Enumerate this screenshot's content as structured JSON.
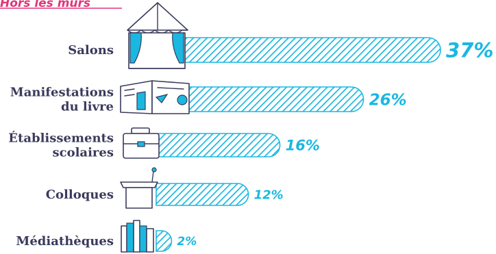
{
  "header": {
    "text": "Hors les murs"
  },
  "chart_data": {
    "type": "bar",
    "orientation": "horizontal",
    "title": "Hors les murs",
    "categories": [
      "Salons",
      "Manifestations du livre",
      "Établissements scolaires",
      "Colloques",
      "Médiathèques"
    ],
    "category_lines": [
      [
        "Salons"
      ],
      [
        "Manifestations",
        "du livre"
      ],
      [
        "Établissements",
        "scolaires"
      ],
      [
        "Colloques"
      ],
      [
        "Médiathèques"
      ]
    ],
    "values": [
      37,
      26,
      16,
      12,
      2
    ],
    "value_labels": [
      "37%",
      "26%",
      "16%",
      "12%",
      "2%"
    ],
    "icons": [
      "tent-icon",
      "newspaper-icon",
      "briefcase-icon",
      "lectern-icon",
      "books-icon"
    ],
    "colors": {
      "bar": "#1ab8e0",
      "header": "#e2357a",
      "label": "#3a3a5c"
    },
    "xlim": [
      0,
      37
    ],
    "grid": false,
    "legend": "none"
  }
}
